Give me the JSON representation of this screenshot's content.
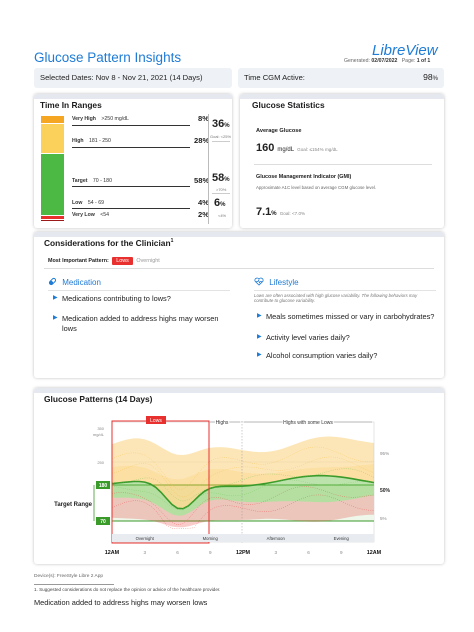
{
  "header": {
    "title": "Glucose Pattern Insights",
    "brand": "LibreView",
    "generated_label": "Generated:",
    "generated_value": "02/07/2022",
    "page_label": "Page:",
    "page_value": "1 of 1"
  },
  "summary": {
    "selected_dates": "Selected Dates: Nov 8 - Nov 21, 2021 (14 Days)",
    "cgm_label": "Time CGM Active:",
    "cgm_value": "98",
    "cgm_unit": "%"
  },
  "time_in_ranges": {
    "title": "Time In Ranges",
    "rows": [
      {
        "label": "Very High",
        "range": ">250 mg/dL",
        "value": "8%"
      },
      {
        "label": "High",
        "range": "181 - 250",
        "value": "28%"
      },
      {
        "label": "Target",
        "range": "70 - 180",
        "value": "58%"
      },
      {
        "label": "Low",
        "range": "54 - 69",
        "value": "4%"
      },
      {
        "label": "Very Low",
        "range": "<54",
        "value": "2%"
      }
    ],
    "combined_high": {
      "value": "36",
      "unit": "%",
      "goal": "Goal: <25%"
    },
    "combined_target": {
      "value": "58",
      "unit": "%",
      "goal": ">70%"
    },
    "combined_low": {
      "value": "6",
      "unit": "%",
      "goal": "<4%"
    },
    "bar_fractions": {
      "very_high": 0.08,
      "high": 0.28,
      "target": 0.58,
      "low": 0.04,
      "very_low": 0.02
    },
    "colors": {
      "very_high": "#f5a623",
      "high": "#fbd15b",
      "target": "#4cb944",
      "low": "#e8312f",
      "very_low": "#9b1a17"
    }
  },
  "glucose_statistics": {
    "title": "Glucose Statistics",
    "avg_label": "Average Glucose",
    "avg_value": "160",
    "avg_unit": "mg/dL",
    "avg_goal": "Goal: ≤154% mg/dL",
    "gmi_label": "Glucose Management Indicator (GMI)",
    "gmi_desc": "Approximate A1C level based on average CGM glucose level.",
    "gmi_value": "7.1",
    "gmi_unit": "%",
    "gmi_goal": "Goal: <7.0%"
  },
  "considerations": {
    "title": "Considerations for the Clinician",
    "title_sup": "1",
    "most_important_label": "Most Important Pattern:",
    "pattern_active": "Lows",
    "pattern_inactive": "Overnight",
    "medication": {
      "heading": "Medication",
      "items": [
        "Medications contributing to lows?",
        "Medication added to address highs may worsen lows"
      ]
    },
    "lifestyle": {
      "heading": "Lifestyle",
      "intro": "Lows are often associated with high glucose variability. The following behaviors may contribute to glucose variability.",
      "items": [
        "Meals sometimes missed or vary in carbohydrates?",
        "Activity level varies daily?",
        "Alcohol consumption varies daily?"
      ]
    }
  },
  "glucose_patterns": {
    "title": "Glucose Patterns (14 Days)",
    "ytick_labels": [
      "350",
      "mg/dL",
      "250",
      "180",
      "70"
    ],
    "target_range_label": "Target Range",
    "section_labels": [
      "Lows",
      "Highs",
      "Highs with some Lows"
    ],
    "percentile_labels": [
      "95%",
      "50%",
      "5%"
    ],
    "period_labels": [
      "Overnight",
      "Morning",
      "Afternoon",
      "Evening"
    ],
    "x_labels": [
      "12AM",
      "3",
      "6",
      "9",
      "12PM",
      "3",
      "6",
      "9",
      "12AM"
    ],
    "colors": {
      "median": "#3a9a2a",
      "low_band": "#e8312f",
      "high_band": "#f7b733",
      "target_band": "#6cc04a"
    }
  },
  "footer": {
    "device": "Device(s): FreeStyle Libre 2 App",
    "footnote": "1. Suggested considerations do not replace the opinion or advice of the healthcare provider.",
    "note": "Medication added to address highs may worsen lows"
  }
}
